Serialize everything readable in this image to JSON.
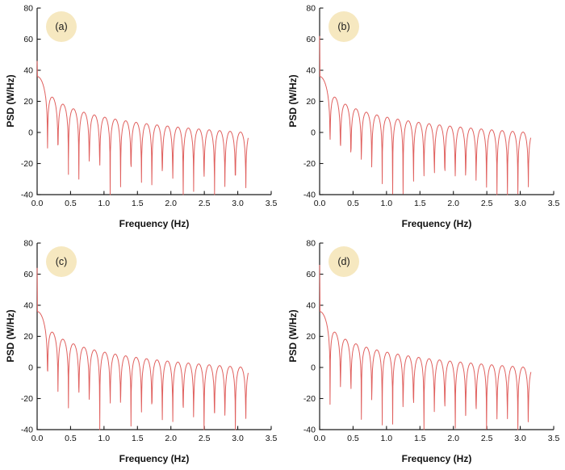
{
  "figure": {
    "background": "#ffffff",
    "curve_color": "#e0605e",
    "axis_color": "#1a1a1a",
    "badge_color": "#f6e8c0",
    "xlabel": "Frequency (Hz)",
    "ylabel": "PSD (W/Hz)",
    "xlim": [
      0,
      3.5
    ],
    "ylim": [
      -40,
      80
    ],
    "xticks": [
      0.0,
      0.5,
      1.0,
      1.5,
      2.0,
      2.5,
      3.0,
      3.5
    ],
    "xtick_labels": [
      "0.0",
      "0.5",
      "1.0",
      "1.5",
      "2.0",
      "2.5",
      "3.0",
      "3.5"
    ],
    "yticks": [
      -40,
      -20,
      0,
      20,
      40,
      60,
      80
    ],
    "ytick_labels": [
      "-40",
      "-20",
      "0",
      "20",
      "40",
      "60",
      "80"
    ]
  },
  "chart_data": [
    {
      "type": "line",
      "panel": "a",
      "label": "(a)",
      "xlabel": "Frequency (Hz)",
      "ylabel": "PSD (W/Hz)",
      "xlim": [
        0,
        3.5
      ],
      "ylim": [
        -40,
        80
      ],
      "model": "sinc_psd_db",
      "peak_db": 36,
      "dc_spike_db": 46,
      "null_spacing_hz": 0.156,
      "f_end": 3.16,
      "sample_step": 0.00397,
      "sample_offset": 0.0004,
      "deep_nulls": [
        [
          0.47,
          -27
        ],
        [
          1.25,
          -35
        ],
        [
          2.35,
          -38
        ],
        [
          2.66,
          -29
        ]
      ]
    },
    {
      "type": "line",
      "panel": "b",
      "label": "(b)",
      "xlabel": "Frequency (Hz)",
      "ylabel": "PSD (W/Hz)",
      "xlim": [
        0,
        3.5
      ],
      "ylim": [
        -40,
        80
      ],
      "model": "sinc_psd_db",
      "peak_db": 36,
      "dc_spike_db": 62,
      "null_spacing_hz": 0.156,
      "f_end": 3.16,
      "sample_step": 0.00401,
      "sample_offset": 0.0011,
      "deep_nulls": [
        [
          0.95,
          -33
        ],
        [
          1.4,
          -27
        ],
        [
          2.08,
          -28
        ],
        [
          3.05,
          -30
        ]
      ]
    },
    {
      "type": "line",
      "panel": "c",
      "label": "(c)",
      "xlabel": "Frequency (Hz)",
      "ylabel": "PSD (W/Hz)",
      "xlim": [
        0,
        3.5
      ],
      "ylim": [
        -40,
        80
      ],
      "model": "sinc_psd_db",
      "peak_db": 36,
      "dc_spike_db": 64,
      "null_spacing_hz": 0.156,
      "f_end": 3.16,
      "sample_step": 0.00393,
      "sample_offset": 0.0007,
      "deep_nulls": [
        [
          0.9,
          -34
        ],
        [
          1.35,
          -37
        ],
        [
          2.6,
          -29
        ]
      ]
    },
    {
      "type": "line",
      "panel": "d",
      "label": "(d)",
      "xlabel": "Frequency (Hz)",
      "ylabel": "PSD (W/Hz)",
      "xlim": [
        0,
        3.5
      ],
      "ylim": [
        -40,
        80
      ],
      "model": "sinc_psd_db",
      "peak_db": 36,
      "dc_spike_db": 66,
      "null_spacing_hz": 0.156,
      "f_end": 3.16,
      "sample_step": 0.00407,
      "sample_offset": 0.0015,
      "deep_nulls": [
        [
          0.95,
          -37
        ],
        [
          1.6,
          -41
        ],
        [
          2.2,
          -30
        ],
        [
          2.85,
          -33
        ]
      ]
    }
  ]
}
